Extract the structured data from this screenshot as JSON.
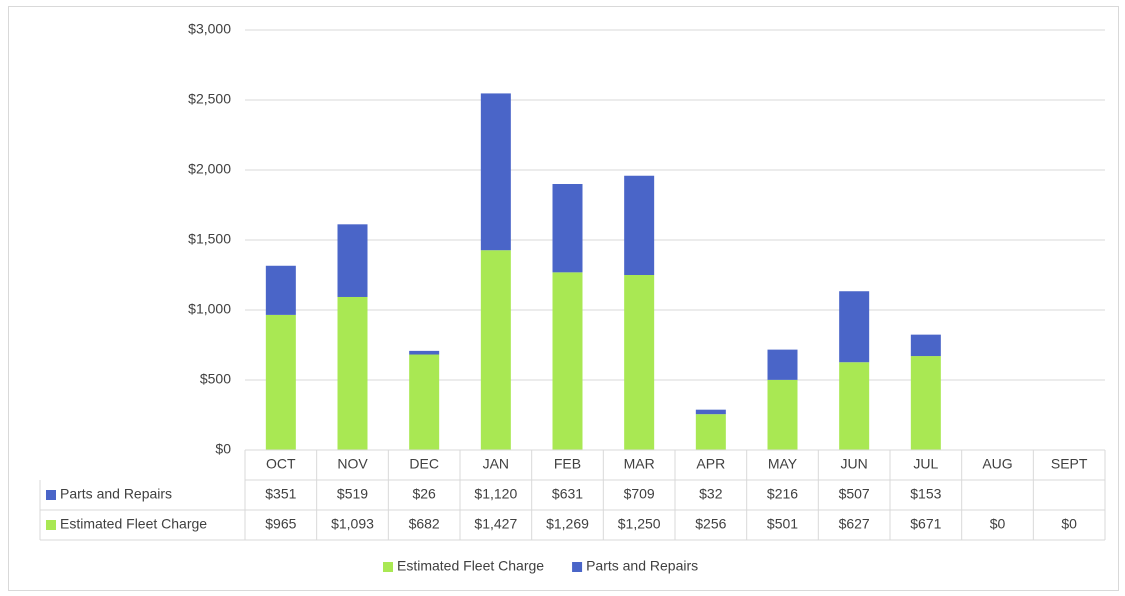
{
  "chart_data": {
    "type": "bar",
    "stacked": true,
    "categories": [
      "OCT",
      "NOV",
      "DEC",
      "JAN",
      "FEB",
      "MAR",
      "APR",
      "MAY",
      "JUN",
      "JUL",
      "AUG",
      "SEPT"
    ],
    "series": [
      {
        "name": "Estimated Fleet Charge",
        "color": "#a9e853",
        "values": [
          965,
          1093,
          682,
          1427,
          1269,
          1250,
          256,
          501,
          627,
          671,
          0,
          0
        ],
        "value_labels": [
          "$965",
          "$1,093",
          "$682",
          "$1,427",
          "$1,269",
          "$1,250",
          "$256",
          "$501",
          "$627",
          "$671",
          "$0",
          "$0"
        ]
      },
      {
        "name": "Parts and Repairs",
        "color": "#4a65c8",
        "values": [
          351,
          519,
          26,
          1120,
          631,
          709,
          32,
          216,
          507,
          153,
          null,
          null
        ],
        "value_labels": [
          "$351",
          "$519",
          "$26",
          "$1,120",
          "$631",
          "$709",
          "$32",
          "$216",
          "$507",
          "$153",
          null,
          null
        ]
      }
    ],
    "ylim": [
      0,
      3000
    ],
    "yticks": [
      {
        "value": 0,
        "label": "$0"
      },
      {
        "value": 500,
        "label": "$500"
      },
      {
        "value": 1000,
        "label": "$1,000"
      },
      {
        "value": 1500,
        "label": "$1,500"
      },
      {
        "value": 2000,
        "label": "$2,000"
      },
      {
        "value": 2500,
        "label": "$2,500"
      },
      {
        "value": 3000,
        "label": "$3,000"
      }
    ],
    "grid": true,
    "legend": "bottom"
  }
}
